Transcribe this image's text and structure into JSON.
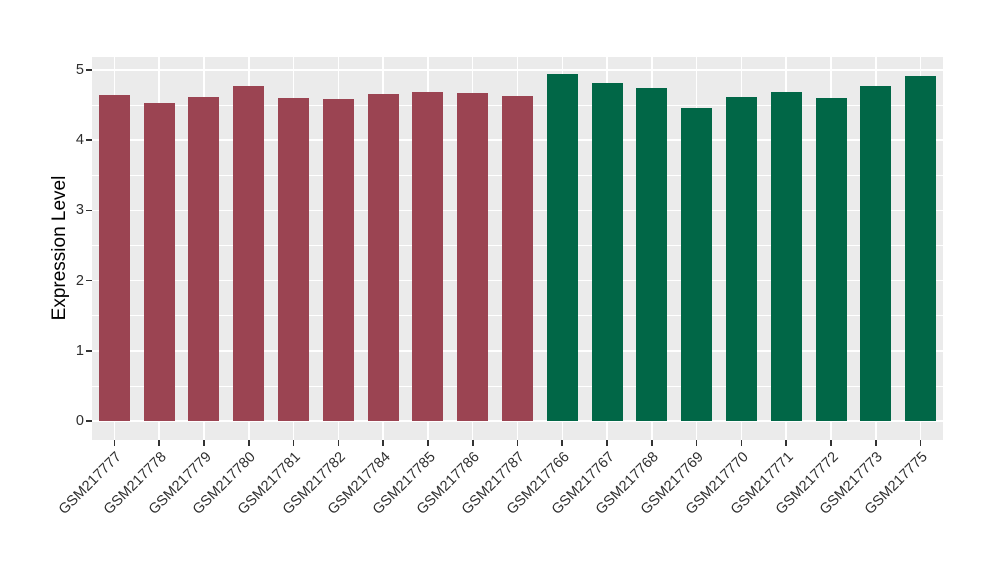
{
  "figure": {
    "background": "#FFFFFF",
    "panel_background": "#EBEBEB",
    "grid_color": "#FFFFFF",
    "axis_text_color": "#2E2E2E",
    "tick_mark_color": "#333333",
    "group_colors": {
      "group_1": "#9B4452",
      "group_2": "#016747"
    }
  },
  "chart_data": {
    "type": "bar",
    "title": "",
    "xlabel": "",
    "ylabel": "Expression Level",
    "ylim": [
      0,
      5.2
    ],
    "yticks": [
      0,
      1,
      2,
      3,
      4,
      5
    ],
    "y_minor_ticks": [
      0.5,
      1.5,
      2.5,
      3.5,
      4.5
    ],
    "grid": true,
    "legend": false,
    "x_tick_rotation": 45,
    "categories": [
      "GSM217777",
      "GSM217778",
      "GSM217779",
      "GSM217780",
      "GSM217781",
      "GSM217782",
      "GSM217784",
      "GSM217785",
      "GSM217786",
      "GSM217787",
      "GSM217766",
      "GSM217767",
      "GSM217768",
      "GSM217769",
      "GSM217770",
      "GSM217771",
      "GSM217772",
      "GSM217773",
      "GSM217775"
    ],
    "values": [
      4.64,
      4.53,
      4.62,
      4.77,
      4.6,
      4.59,
      4.66,
      4.69,
      4.67,
      4.63,
      4.94,
      4.81,
      4.74,
      4.46,
      4.61,
      4.69,
      4.6,
      4.77,
      4.91
    ],
    "bar_colors": [
      "#9B4452",
      "#9B4452",
      "#9B4452",
      "#9B4452",
      "#9B4452",
      "#9B4452",
      "#9B4452",
      "#9B4452",
      "#9B4452",
      "#9B4452",
      "#016747",
      "#016747",
      "#016747",
      "#016747",
      "#016747",
      "#016747",
      "#016747",
      "#016747",
      "#016747"
    ]
  }
}
